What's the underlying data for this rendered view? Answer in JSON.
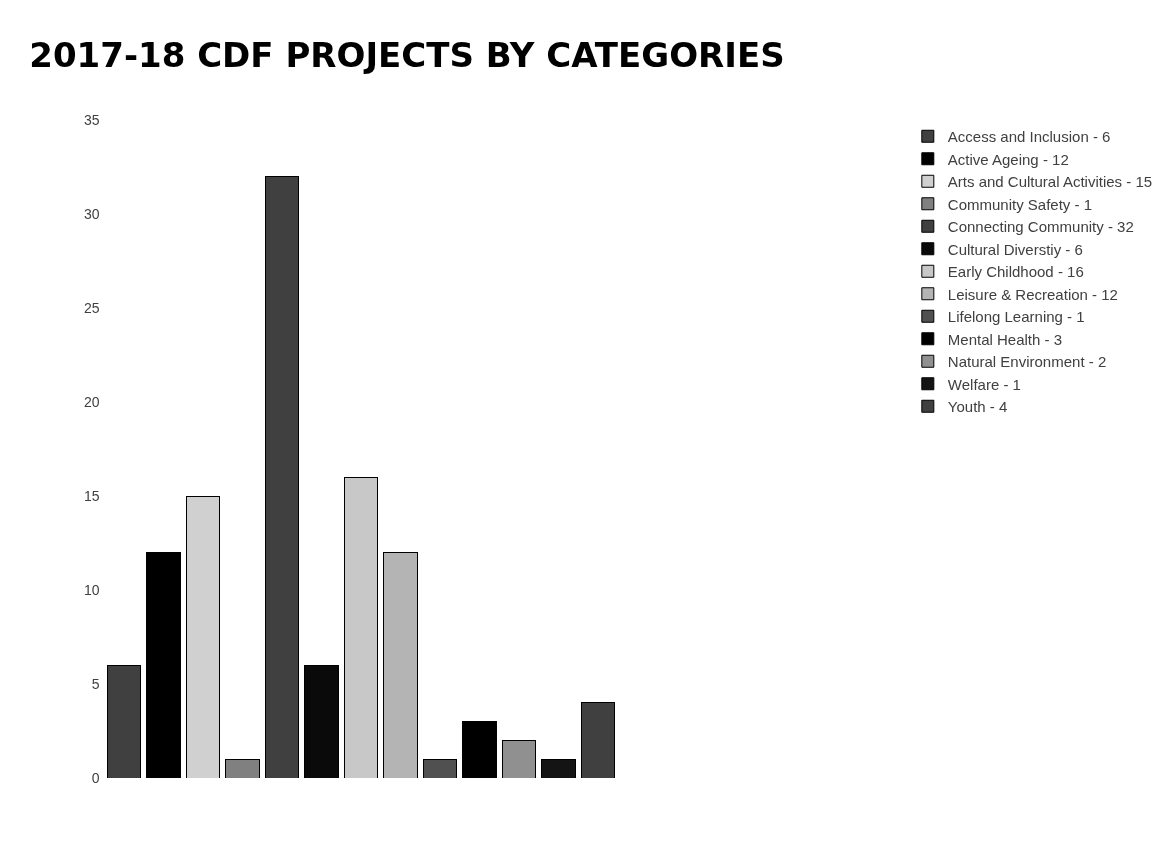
{
  "chart_data": {
    "type": "bar",
    "title": "2017-18 CDF PROJECTS BY CATEGORIES",
    "stacked": true,
    "categories": [
      null,
      null,
      null,
      null,
      null,
      null,
      null,
      null,
      null,
      null,
      null,
      null,
      null
    ],
    "series": [
      {
        "name": "Access and Inclusion - 6",
        "color": "#404040",
        "values": [
          6,
          null,
          null,
          null,
          null,
          null,
          null,
          null,
          null,
          null,
          null,
          null,
          null
        ]
      },
      {
        "name": "Active Ageing - 12",
        "color": "#000000",
        "values": [
          null,
          12,
          null,
          null,
          null,
          null,
          null,
          null,
          null,
          null,
          null,
          null,
          null
        ]
      },
      {
        "name": "Arts and Cultural Activities - 15",
        "color": "#d0d0d0",
        "values": [
          null,
          null,
          15,
          null,
          null,
          null,
          null,
          null,
          null,
          null,
          null,
          null,
          null
        ]
      },
      {
        "name": "Community Safety - 1",
        "color": "#808080",
        "values": [
          null,
          null,
          null,
          1,
          null,
          null,
          null,
          null,
          null,
          null,
          null,
          null,
          null
        ]
      },
      {
        "name": "Connecting Community - 32",
        "color": "#404040",
        "values": [
          null,
          null,
          null,
          null,
          32,
          null,
          null,
          null,
          null,
          null,
          null,
          null,
          null
        ]
      },
      {
        "name": "Cultural Diverstiy - 6",
        "color": "#0a0a0a",
        "values": [
          null,
          null,
          null,
          null,
          null,
          6,
          null,
          null,
          null,
          null,
          null,
          null,
          null
        ]
      },
      {
        "name": "Early Childhood - 16",
        "color": "#c8c8c8",
        "values": [
          null,
          null,
          null,
          null,
          null,
          null,
          16,
          null,
          null,
          null,
          null,
          null,
          null
        ]
      },
      {
        "name": "Leisure & Recreation - 12",
        "color": "#b4b4b4",
        "values": [
          null,
          null,
          null,
          null,
          null,
          null,
          null,
          12,
          null,
          null,
          null,
          null,
          null
        ]
      },
      {
        "name": "Lifelong Learning - 1",
        "color": "#505050",
        "values": [
          null,
          null,
          null,
          null,
          null,
          null,
          null,
          null,
          1,
          null,
          null,
          null,
          null
        ]
      },
      {
        "name": "Mental Health - 3",
        "color": "#000000",
        "values": [
          null,
          null,
          null,
          null,
          null,
          null,
          null,
          null,
          null,
          3,
          null,
          null,
          null
        ]
      },
      {
        "name": "Natural Environment - 2",
        "color": "#909090",
        "values": [
          null,
          null,
          null,
          null,
          null,
          null,
          null,
          null,
          null,
          null,
          2,
          null,
          null
        ]
      },
      {
        "name": "Welfare - 1",
        "color": "#141414",
        "values": [
          null,
          null,
          null,
          null,
          null,
          null,
          null,
          null,
          null,
          null,
          null,
          1,
          null
        ]
      },
      {
        "name": "Youth - 4",
        "color": "#404040",
        "values": [
          null,
          null,
          null,
          null,
          null,
          null,
          null,
          null,
          null,
          null,
          null,
          null,
          4
        ]
      }
    ],
    "ylim": [
      0,
      35
    ],
    "yticks": [
      0,
      5,
      10,
      15,
      20,
      25,
      30,
      35
    ],
    "legend": "right"
  }
}
